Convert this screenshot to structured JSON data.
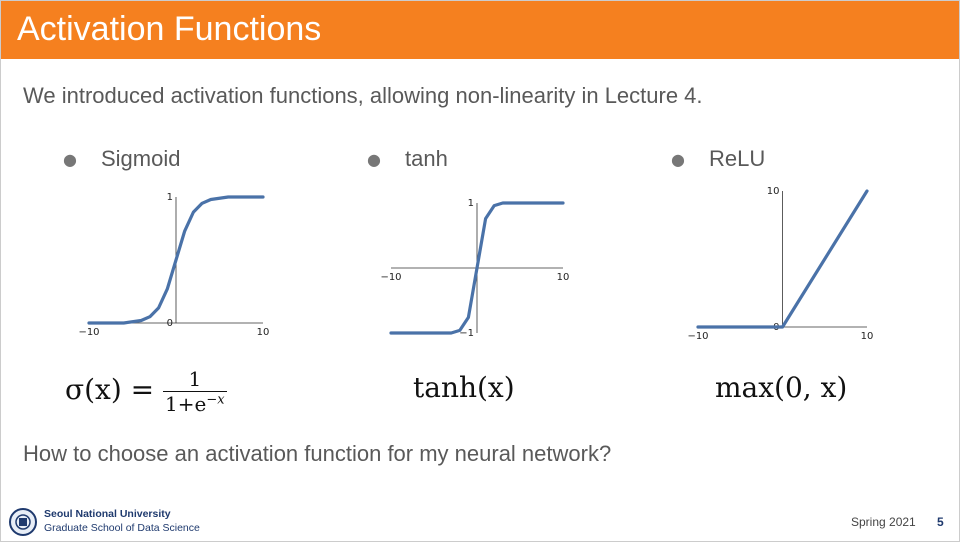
{
  "header": {
    "title": "Activation Functions"
  },
  "intro": "We introduced activation functions, allowing non-linearity in Lecture 4.",
  "bullets": [
    "Sigmoid",
    "tanh",
    "ReLU"
  ],
  "formulas": [
    {
      "lhs": "σ(x) =",
      "numerator": "1",
      "denominator": "1+e",
      "exponent": "−x"
    },
    {
      "text": "tanh(x)"
    },
    {
      "text": "max(0, x)"
    }
  ],
  "question": "How to choose an activation function for my neural network?",
  "footer": {
    "university": "Seoul National University",
    "school": "Graduate School of Data Science",
    "term": "Spring 2021",
    "page": "5"
  },
  "chart_data": [
    {
      "type": "line",
      "color": "#4a72a8",
      "x": [
        -10,
        -9,
        -8,
        -7,
        -6,
        -5,
        -4,
        -3,
        -2,
        -1,
        0,
        1,
        2,
        3,
        4,
        5,
        6,
        7,
        8,
        9,
        10
      ],
      "values": [
        0,
        0,
        0,
        0,
        0,
        0.01,
        0.02,
        0.05,
        0.12,
        0.27,
        0.5,
        0.73,
        0.88,
        0.95,
        0.98,
        0.99,
        1,
        1,
        1,
        1,
        1
      ],
      "xlim": [
        -10,
        10
      ],
      "ylim": [
        0,
        1
      ],
      "xticks": [
        {
          "value": -10,
          "label": "−10"
        },
        10
      ],
      "yticks": [
        0,
        1
      ]
    },
    {
      "type": "line",
      "color": "#4a72a8",
      "x": [
        -10,
        -9,
        -8,
        -7,
        -6,
        -5,
        -4,
        -3,
        -2,
        -1,
        0,
        1,
        2,
        3,
        4,
        5,
        6,
        7,
        8,
        9,
        10
      ],
      "values": [
        -1,
        -1,
        -1,
        -1,
        -1,
        -1,
        -1,
        -1,
        -0.96,
        -0.76,
        0,
        0.76,
        0.96,
        1,
        1,
        1,
        1,
        1,
        1,
        1,
        1
      ],
      "xlim": [
        -10,
        10
      ],
      "ylim": [
        -1,
        1
      ],
      "xticks": [
        {
          "value": -10,
          "label": "−10"
        },
        10
      ],
      "yticks": [
        {
          "value": -1,
          "label": "−1"
        },
        1
      ]
    },
    {
      "type": "line",
      "color": "#4a72a8",
      "x": [
        -10,
        0,
        10
      ],
      "values": [
        0,
        0,
        10
      ],
      "xlim": [
        -10,
        10
      ],
      "ylim": [
        0,
        10
      ],
      "xticks": [
        {
          "value": -10,
          "label": "−10"
        },
        10
      ],
      "yticks": [
        0,
        10
      ]
    }
  ]
}
